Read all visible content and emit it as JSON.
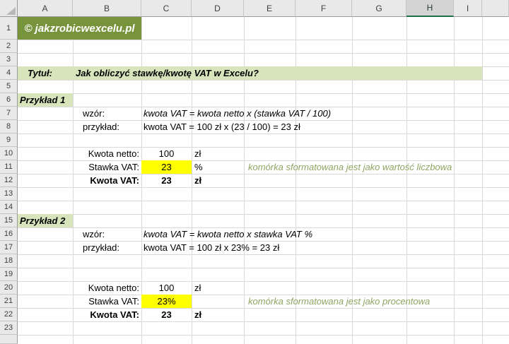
{
  "sheet": {
    "columns": [
      "A",
      "B",
      "C",
      "D",
      "E",
      "F",
      "G",
      "H",
      "I"
    ],
    "selected_column": "H",
    "rows": [
      "1",
      "2",
      "3",
      "4",
      "5",
      "6",
      "7",
      "8",
      "9",
      "10",
      "11",
      "12",
      "13",
      "14",
      "15",
      "16",
      "17",
      "18",
      "19",
      "20",
      "21",
      "22",
      "23"
    ],
    "logo": "© jakzrobicwexcelu.pl",
    "title": {
      "label": "Tytuł:",
      "text": "Jak obliczyć stawkę/kwotę VAT w Excelu?"
    },
    "example1": {
      "header": "Przykład 1",
      "formula_label": "wzór:",
      "formula": "kwota VAT = kwota netto x (stawka VAT / 100)",
      "example_label": "przykład:",
      "example_text": "kwota VAT = 100 zł x (23 / 100) = 23 zł",
      "netto_label": "Kwota netto:",
      "netto_value": "100",
      "netto_unit": "zł",
      "vat_rate_label": "Stawka VAT:",
      "vat_rate_value": "23",
      "vat_rate_unit": "%",
      "vat_rate_note": "komórka sformatowana jest jako wartość liczbowa",
      "vat_amount_label": "Kwota VAT:",
      "vat_amount_value": "23",
      "vat_amount_unit": "zł"
    },
    "example2": {
      "header": "Przykład 2",
      "formula_label": "wzór:",
      "formula": "kwota VAT = kwota netto x stawka VAT %",
      "example_label": "przykład:",
      "example_text": "kwota VAT = 100 zł x 23% = 23 zł",
      "netto_label": "Kwota netto:",
      "netto_value": "100",
      "netto_unit": "zł",
      "vat_rate_label": "Stawka VAT:",
      "vat_rate_value": "23%",
      "vat_rate_note": "komórka sformatowana jest jako procentowa",
      "vat_amount_label": "Kwota VAT:",
      "vat_amount_value": "23",
      "vat_amount_unit": "zł"
    },
    "colors": {
      "logo_bg": "#77933C",
      "band_bg": "#D7E4BC",
      "highlight_bg": "#FFFF00",
      "note_text": "#8FA563",
      "selection_green": "#1E7145"
    }
  }
}
